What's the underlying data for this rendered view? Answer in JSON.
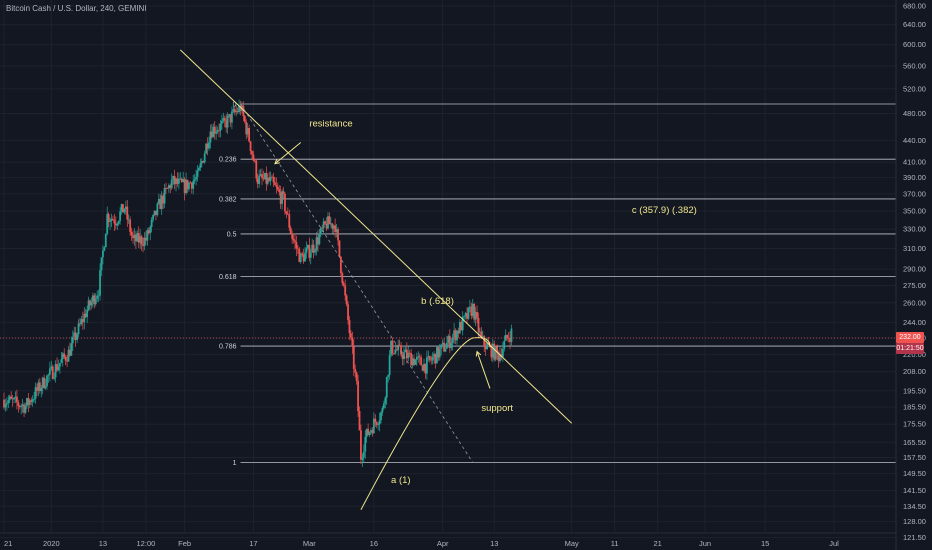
{
  "header": {
    "title": "Bitcoin Cash / U.S. Dollar, 240, GEMINI"
  },
  "price_scale": {
    "ticks": [
      "680.00",
      "640.00",
      "600.00",
      "560.00",
      "520.00",
      "480.00",
      "440.00",
      "410.00",
      "390.00",
      "370.00",
      "350.00",
      "330.00",
      "310.00",
      "290.00",
      "275.00",
      "260.00",
      "244.00",
      "232.00",
      "220.00",
      "208.00",
      "195.50",
      "185.50",
      "175.50",
      "165.50",
      "157.50",
      "149.50",
      "141.50",
      "134.50",
      "128.00",
      "121.50"
    ]
  },
  "time_scale": {
    "ticks": [
      "21",
      "2020",
      "13",
      "12:00",
      "Feb",
      "17",
      "Mar",
      "16",
      "Apr",
      "13",
      "May",
      "11",
      "21",
      "Jun",
      "15",
      "Jul"
    ]
  },
  "current_price": {
    "price": "232.00",
    "countdown": "01:21:50",
    "color": "#ef5350",
    "tag_color": "#b2344a"
  },
  "fib_levels": [
    {
      "label": "0",
      "price": 495
    },
    {
      "label": "0.236",
      "price": 414
    },
    {
      "label": "0.382",
      "price": 364
    },
    {
      "label": "0.5",
      "price": 325
    },
    {
      "label": "0.618",
      "price": 283
    },
    {
      "label": "0.786",
      "price": 226
    },
    {
      "label": "1",
      "price": 155
    }
  ],
  "annotations": {
    "resistance": "resistance",
    "support": "support",
    "wave_a": "a (1)",
    "wave_b": "b (.618)",
    "wave_c": "c (357.9) (.382)"
  },
  "chart_data": {
    "type": "candlestick",
    "title": "Bitcoin Cash / U.S. Dollar, 240, GEMINI",
    "xlabel": "",
    "ylabel": "",
    "y_axis_scale": "log",
    "ylim": [
      121.5,
      680
    ],
    "x_ticks": [
      "21",
      "2020",
      "13",
      "12:00",
      "Feb",
      "17",
      "Mar",
      "16",
      "Apr",
      "13",
      "May",
      "11",
      "21",
      "Jun",
      "15",
      "Jul"
    ],
    "close_path": [
      {
        "date": "2019-12-21",
        "close": 190
      },
      {
        "date": "2019-12-26",
        "close": 186
      },
      {
        "date": "2019-12-31",
        "close": 204
      },
      {
        "date": "2020-01-05",
        "close": 221
      },
      {
        "date": "2020-01-09",
        "close": 252
      },
      {
        "date": "2020-01-12",
        "close": 272
      },
      {
        "date": "2020-01-14",
        "close": 345
      },
      {
        "date": "2020-01-16",
        "close": 340
      },
      {
        "date": "2020-01-18",
        "close": 354
      },
      {
        "date": "2020-01-20",
        "close": 318
      },
      {
        "date": "2020-01-23",
        "close": 319
      },
      {
        "date": "2020-01-26",
        "close": 356
      },
      {
        "date": "2020-01-29",
        "close": 385
      },
      {
        "date": "2020-02-01",
        "close": 379
      },
      {
        "date": "2020-02-04",
        "close": 390
      },
      {
        "date": "2020-02-07",
        "close": 455
      },
      {
        "date": "2020-02-10",
        "close": 462
      },
      {
        "date": "2020-02-14",
        "close": 490
      },
      {
        "date": "2020-02-16",
        "close": 442
      },
      {
        "date": "2020-02-18",
        "close": 388
      },
      {
        "date": "2020-02-21",
        "close": 385
      },
      {
        "date": "2020-02-24",
        "close": 362
      },
      {
        "date": "2020-02-26",
        "close": 322
      },
      {
        "date": "2020-02-28",
        "close": 300
      },
      {
        "date": "2020-03-02",
        "close": 312
      },
      {
        "date": "2020-03-05",
        "close": 336
      },
      {
        "date": "2020-03-07",
        "close": 335
      },
      {
        "date": "2020-03-09",
        "close": 273
      },
      {
        "date": "2020-03-12",
        "close": 198
      },
      {
        "date": "2020-03-13",
        "close": 158
      },
      {
        "date": "2020-03-14",
        "close": 168
      },
      {
        "date": "2020-03-16",
        "close": 176
      },
      {
        "date": "2020-03-18",
        "close": 183
      },
      {
        "date": "2020-03-20",
        "close": 225
      },
      {
        "date": "2020-03-23",
        "close": 220
      },
      {
        "date": "2020-03-25",
        "close": 217
      },
      {
        "date": "2020-03-28",
        "close": 212
      },
      {
        "date": "2020-03-31",
        "close": 221
      },
      {
        "date": "2020-04-03",
        "close": 231
      },
      {
        "date": "2020-04-06",
        "close": 245
      },
      {
        "date": "2020-04-08",
        "close": 256
      },
      {
        "date": "2020-04-10",
        "close": 230
      },
      {
        "date": "2020-04-12",
        "close": 224
      },
      {
        "date": "2020-04-14",
        "close": 219
      },
      {
        "date": "2020-04-16",
        "close": 232
      },
      {
        "date": "2020-04-17",
        "close": 236
      }
    ],
    "drawings": {
      "resistance_trendline": {
        "from": {
          "date": "2020-01-31",
          "price": 590
        },
        "to": {
          "date": "2020-05-01",
          "price": 176
        }
      },
      "dashed_line": {
        "from": {
          "date": "2020-02-14",
          "price": 495
        },
        "to": {
          "date": "2020-04-08",
          "price": 155
        }
      },
      "support_curve": {
        "from": {
          "date": "2020-03-13",
          "price": 133
        },
        "to": {
          "date": "2020-04-12",
          "price": 225
        }
      },
      "fib_retracement": {
        "high": 495,
        "low": 155
      }
    },
    "current_price": 232.0,
    "grid": true,
    "colors": {
      "up": "#26a69a",
      "down": "#ef5350",
      "drawings": "#f0e68c",
      "fib": "#d1d4dc"
    }
  }
}
